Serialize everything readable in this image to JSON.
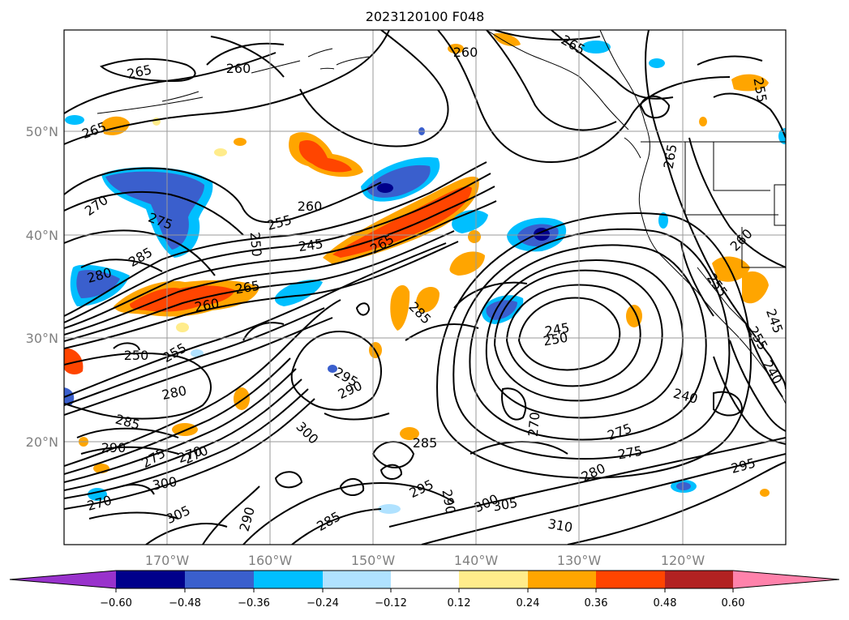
{
  "title": "2023120100 F048",
  "map": {
    "lon_labels": [
      "170°W",
      "160°W",
      "150°W",
      "140°W",
      "130°W",
      "120°W"
    ],
    "lat_labels": [
      "50°N",
      "40°N",
      "30°N",
      "20°N"
    ],
    "grid": true
  },
  "contour_labels": [
    "265",
    "260",
    "265",
    "255",
    "265",
    "260",
    "270",
    "275",
    "260",
    "255",
    "245",
    "265",
    "250",
    "280",
    "285",
    "260",
    "265",
    "265",
    "260",
    "255",
    "285",
    "245",
    "250",
    "250",
    "255",
    "280",
    "295",
    "290",
    "285",
    "290",
    "275",
    "270",
    "300",
    "305",
    "270",
    "300",
    "285",
    "270",
    "275",
    "240",
    "275",
    "280",
    "295",
    "300",
    "305",
    "290",
    "295",
    "285",
    "290",
    "310",
    "270",
    "255",
    "240",
    "245"
  ],
  "colorbar": {
    "ticks": [
      "−0.60",
      "−0.48",
      "−0.36",
      "−0.24",
      "−0.12",
      "0.12",
      "0.24",
      "0.36",
      "0.48",
      "0.60"
    ],
    "colors": [
      "#9932cc",
      "#00008b",
      "#3a5fcd",
      "#00bfff",
      "#b0e2ff",
      "#ffffff",
      "#ffec8b",
      "#ffa500",
      "#ff4500",
      "#b22222",
      "#ff82ab"
    ]
  }
}
